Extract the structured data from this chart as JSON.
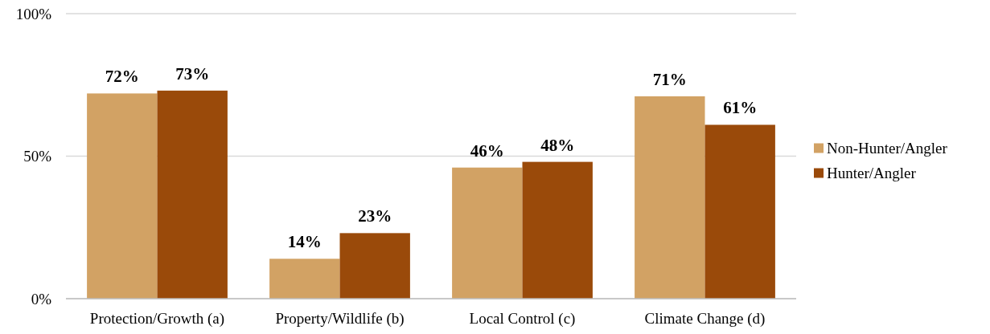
{
  "chart_data": {
    "type": "bar",
    "categories": [
      "Protection/Growth (a)",
      "Property/Wildlife (b)",
      "Local Control (c)",
      "Climate Change (d)"
    ],
    "series": [
      {
        "name": "Non-Hunter/Angler",
        "color": "#d2a264",
        "values": [
          72,
          14,
          46,
          71
        ],
        "value_labels": [
          "72%",
          "14%",
          "46%",
          "71%"
        ]
      },
      {
        "name": "Hunter/Angler",
        "color": "#9a4a0a",
        "values": [
          73,
          23,
          48,
          61
        ],
        "value_labels": [
          "73%",
          "23%",
          "48%",
          "61%"
        ]
      }
    ],
    "ylim": [
      0,
      100
    ],
    "yticks": [
      {
        "value": 0,
        "label": "0%"
      },
      {
        "value": 50,
        "label": "50%"
      },
      {
        "value": 100,
        "label": "100%"
      }
    ],
    "grid": "y",
    "legend": "right"
  }
}
